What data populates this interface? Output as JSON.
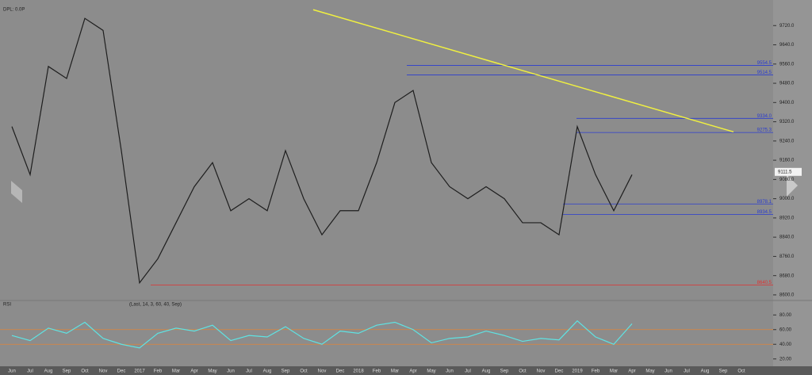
{
  "chart_data": [
    {
      "type": "line",
      "title": "DPL: 0.0P",
      "categories": [
        "Jun",
        "Jul",
        "Aug",
        "Sep",
        "Oct",
        "Nov",
        "Dec",
        "2017",
        "Feb",
        "Mar",
        "Apr",
        "May",
        "Jun",
        "Jul",
        "Aug",
        "Sep",
        "Oct",
        "Nov",
        "Dec",
        "2018",
        "Feb",
        "Mar",
        "Apr",
        "May",
        "Jun",
        "Jul",
        "Aug",
        "Sep",
        "Oct",
        "Nov",
        "Dec",
        "2019",
        "Feb",
        "Mar",
        "Apr",
        "May",
        "Jun",
        "Jul",
        "Aug",
        "Sep",
        "Oct"
      ],
      "series": [
        {
          "name": "Last",
          "color": "#1e1e1e",
          "values": [
            9300,
            9100,
            9550,
            9500,
            9750,
            9700,
            9200,
            8650,
            8750,
            8900,
            9050,
            9150,
            8950,
            9000,
            8950,
            9200,
            9000,
            8850,
            8950,
            8950,
            9150,
            9400,
            9450,
            9150,
            9050,
            9000,
            9050,
            9000,
            8900,
            8900,
            8850,
            9300,
            9100,
            8950,
            9100,
            null,
            null,
            null,
            null,
            null,
            null
          ]
        }
      ],
      "ylim": [
        8580,
        9800
      ],
      "yticks": [
        {
          "value": 8600,
          "label": "8600.0"
        },
        {
          "value": 8680,
          "label": "8680.0"
        },
        {
          "value": 8760,
          "label": "8760.0"
        },
        {
          "value": 8840,
          "label": "8840.0"
        },
        {
          "value": 8920,
          "label": "8920.0"
        },
        {
          "value": 9000,
          "label": "9000.0"
        },
        {
          "value": 9080,
          "label": "9080.0"
        },
        {
          "value": 9160,
          "label": "9160.0"
        },
        {
          "value": 9240,
          "label": "9240.0"
        },
        {
          "value": 9320,
          "label": "9320.0"
        },
        {
          "value": 9400,
          "label": "9400.0"
        },
        {
          "value": 9480,
          "label": "9480.0"
        },
        {
          "value": 9560,
          "label": "9560.0"
        },
        {
          "value": 9640,
          "label": "9640.0"
        },
        {
          "value": 9720,
          "label": "9720.0"
        }
      ],
      "levels": [
        {
          "value": 9554.5,
          "label": "9554.5",
          "color": "#2a3cd0"
        },
        {
          "value": 9514.5,
          "label": "9514.5",
          "color": "#2a3cd0"
        },
        {
          "value": 9334.0,
          "label": "9334.0",
          "color": "#2a3cd0"
        },
        {
          "value": 9275.3,
          "label": "9275.3",
          "color": "#2a3cd0"
        },
        {
          "value": 8978.1,
          "label": "8978.1",
          "color": "#2a3cd0"
        },
        {
          "value": 8934.5,
          "label": "8934.5",
          "color": "#2a3cd0"
        },
        {
          "value": 8640.5,
          "label": "8640.5",
          "color": "#e03030"
        }
      ],
      "last_price": {
        "value": 9111.5,
        "label": "9111.5"
      },
      "trendline": {
        "values": [
          9786,
          9278
        ],
        "color": "#f0f040"
      }
    },
    {
      "type": "line",
      "title": "RSI",
      "subtitle": "(Last, 14, 3, 60, 40, Sep)",
      "series": [
        {
          "name": "RSI",
          "color": "#5fe3e3",
          "values": [
            52,
            45,
            62,
            55,
            70,
            48,
            40,
            35,
            55,
            62,
            58,
            66,
            45,
            52,
            50,
            64,
            48,
            40,
            58,
            55,
            66,
            70,
            60,
            42,
            48,
            50,
            58,
            52,
            44,
            48,
            46,
            72,
            50,
            40,
            68,
            null,
            null,
            null,
            null,
            null,
            null
          ]
        }
      ],
      "ylim": [
        10,
        90
      ],
      "yticks": [
        {
          "value": 20,
          "label": "20.00"
        },
        {
          "value": 40,
          "label": "40.00"
        },
        {
          "value": 60,
          "label": "60.00"
        },
        {
          "value": 80,
          "label": "80.00"
        }
      ],
      "levels": [
        60,
        40
      ],
      "level_color": "#e0843a"
    }
  ]
}
